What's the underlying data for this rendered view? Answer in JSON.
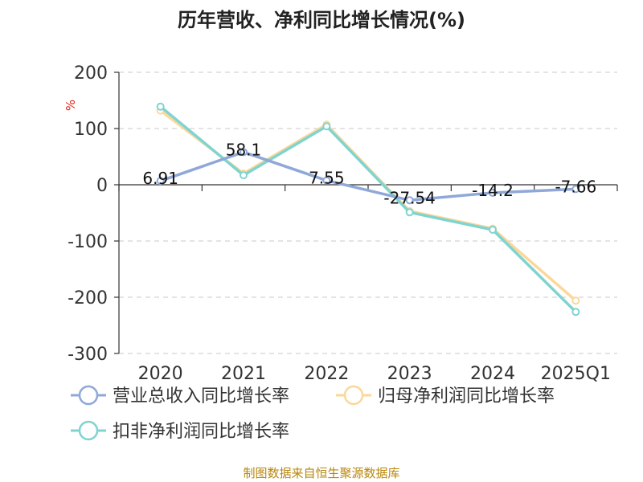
{
  "chart_data": {
    "type": "line",
    "title": "历年营收、净利同比增长情况(%)",
    "ylabel": "%",
    "categories": [
      "2020",
      "2021",
      "2022",
      "2023",
      "2024",
      "2025Q1"
    ],
    "ylim": [
      -300,
      200
    ],
    "yticks": [
      200,
      100,
      0,
      -100,
      -200,
      -300
    ],
    "grid": "horizontal-dashed",
    "legend_position": "bottom",
    "series": [
      {
        "name": "营业总收入同比增长率",
        "color": "#8fa8d8",
        "values": [
          6.91,
          58.1,
          7.55,
          -27.54,
          -14.2,
          -7.66
        ],
        "data_labels": [
          "6.91",
          "58.1",
          "7.55",
          "-27.54",
          "-14.2",
          "-7.66"
        ]
      },
      {
        "name": "归母净利润同比增长率",
        "color": "#fbd89a",
        "values": [
          132,
          20,
          107,
          -47,
          -78,
          -206
        ]
      },
      {
        "name": "扣非净利润同比增长率",
        "color": "#7fd4d0",
        "values": [
          139,
          17,
          104,
          -49,
          -80,
          -226
        ]
      }
    ]
  },
  "footer": {
    "source": "制图数据来自恒生聚源数据库"
  }
}
